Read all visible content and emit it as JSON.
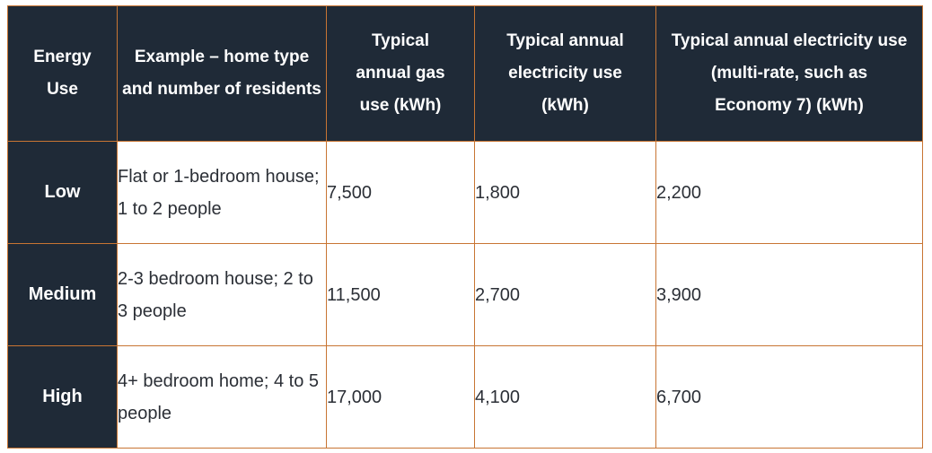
{
  "table": {
    "headers": [
      "Energy Use",
      "Example – home type and number of residents",
      "Typical annual gas use (kWh)",
      "Typical annual electricity use (kWh)",
      "Typical annual electricity use (multi-rate, such as Economy 7) (kWh)"
    ],
    "rows": [
      {
        "level": "Low",
        "example": "Flat or 1-bedroom house; 1 to 2 people",
        "gas": "7,500",
        "electricity": "1,800",
        "multi_rate": "2,200"
      },
      {
        "level": "Medium",
        "example": "2-3 bedroom house; 2 to 3 people",
        "gas": "11,500",
        "electricity": "2,700",
        "multi_rate": "3,900"
      },
      {
        "level": "High",
        "example": "4+ bedroom home; 4 to 5 people",
        "gas": "17,000",
        "electricity": "4,100",
        "multi_rate": "6,700"
      }
    ]
  },
  "colors": {
    "header_bg": "#1f2a37",
    "border": "#c87533",
    "body_text": "#2b2f36"
  }
}
